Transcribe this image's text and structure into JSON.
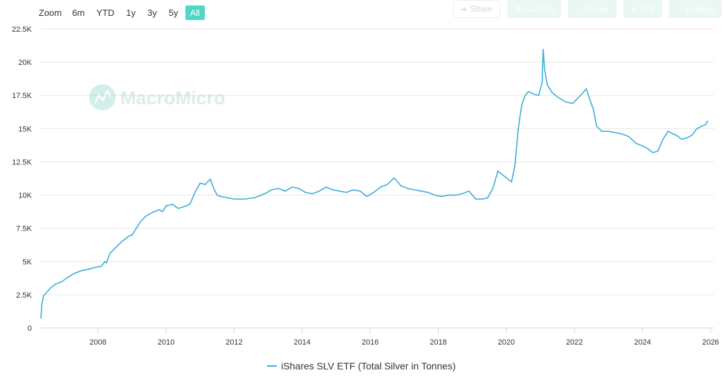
{
  "toolbar": {
    "zoom_label": "Zoom",
    "ranges": [
      "6m",
      "YTD",
      "1y",
      "3y",
      "5y",
      "All"
    ],
    "active_range": "All",
    "share_label": "Share",
    "custom_label": "Custom",
    "image_label": "Image",
    "diy_label": "DIY",
    "enlarge_label": "Enlarge"
  },
  "watermark": {
    "text": "MacroMicro"
  },
  "colors": {
    "series": "#3aaed8",
    "active_button": "#4fd6c4",
    "grid": "#e6e6e6"
  },
  "chart_data": {
    "type": "line",
    "title": "",
    "xlabel": "",
    "ylabel": "",
    "x_ticks": [
      "2008",
      "2010",
      "2012",
      "2014",
      "2016",
      "2018",
      "2020",
      "2022",
      "2024",
      "2026"
    ],
    "y_ticks": [
      "0",
      "2.5K",
      "5K",
      "7.5K",
      "10K",
      "12.5K",
      "15K",
      "17.5K",
      "20K",
      "22.5K"
    ],
    "ylim": [
      0,
      22500
    ],
    "xlim": [
      2006.3,
      2026.1
    ],
    "grid": true,
    "legend_position": "bottom-center",
    "series": [
      {
        "name": "iShares SLV ETF (Total Silver in Tonnes)",
        "x": [
          2006.32,
          2006.35,
          2006.4,
          2006.5,
          2006.6,
          2006.75,
          2006.95,
          2007.1,
          2007.3,
          2007.5,
          2007.7,
          2007.9,
          2008.0,
          2008.1,
          2008.2,
          2008.25,
          2008.35,
          2008.5,
          2008.7,
          2008.9,
          2009.0,
          2009.1,
          2009.25,
          2009.4,
          2009.6,
          2009.8,
          2009.9,
          2010.0,
          2010.2,
          2010.35,
          2010.5,
          2010.7,
          2010.85,
          2011.0,
          2011.15,
          2011.3,
          2011.4,
          2011.5,
          2011.6,
          2011.8,
          2012.0,
          2012.3,
          2012.6,
          2012.9,
          2013.1,
          2013.3,
          2013.5,
          2013.7,
          2013.9,
          2014.1,
          2014.3,
          2014.5,
          2014.7,
          2014.9,
          2015.1,
          2015.3,
          2015.5,
          2015.7,
          2015.9,
          2016.1,
          2016.3,
          2016.5,
          2016.7,
          2016.9,
          2017.1,
          2017.3,
          2017.5,
          2017.7,
          2017.9,
          2018.1,
          2018.3,
          2018.5,
          2018.7,
          2018.9,
          2019.1,
          2019.3,
          2019.45,
          2019.6,
          2019.75,
          2019.9,
          2020.05,
          2020.15,
          2020.25,
          2020.35,
          2020.45,
          2020.55,
          2020.65,
          2020.8,
          2020.95,
          2021.05,
          2021.08,
          2021.12,
          2021.2,
          2021.35,
          2021.55,
          2021.75,
          2021.95,
          2022.1,
          2022.25,
          2022.35,
          2022.45,
          2022.55,
          2022.65,
          2022.8,
          2023.0,
          2023.2,
          2023.4,
          2023.6,
          2023.8,
          2024.0,
          2024.15,
          2024.3,
          2024.45,
          2024.6,
          2024.75,
          2024.9,
          2025.0,
          2025.15,
          2025.3,
          2025.45,
          2025.6,
          2025.75,
          2025.85,
          2025.92
        ],
        "y": [
          700,
          1800,
          2400,
          2700,
          3000,
          3300,
          3500,
          3800,
          4100,
          4300,
          4400,
          4550,
          4600,
          4650,
          5000,
          4900,
          5600,
          6000,
          6500,
          6900,
          7000,
          7400,
          8000,
          8400,
          8700,
          8900,
          8750,
          9200,
          9300,
          9000,
          9100,
          9300,
          10200,
          10900,
          10800,
          11200,
          10500,
          10000,
          9900,
          9800,
          9700,
          9700,
          9800,
          10100,
          10400,
          10500,
          10300,
          10600,
          10500,
          10200,
          10100,
          10300,
          10600,
          10400,
          10300,
          10200,
          10400,
          10300,
          9900,
          10200,
          10600,
          10800,
          11300,
          10700,
          10500,
          10400,
          10300,
          10200,
          10000,
          9900,
          10000,
          10000,
          10100,
          10300,
          9700,
          9700,
          9800,
          10500,
          11800,
          11500,
          11200,
          11000,
          12200,
          15000,
          16800,
          17500,
          17800,
          17600,
          17500,
          18500,
          21000,
          19500,
          18300,
          17700,
          17300,
          17000,
          16900,
          17300,
          17700,
          18000,
          17200,
          16500,
          15200,
          14800,
          14800,
          14700,
          14600,
          14400,
          13900,
          13700,
          13500,
          13200,
          13300,
          14200,
          14800,
          14600,
          14500,
          14200,
          14300,
          14500,
          15000,
          15200,
          15300,
          15600
        ]
      }
    ]
  }
}
